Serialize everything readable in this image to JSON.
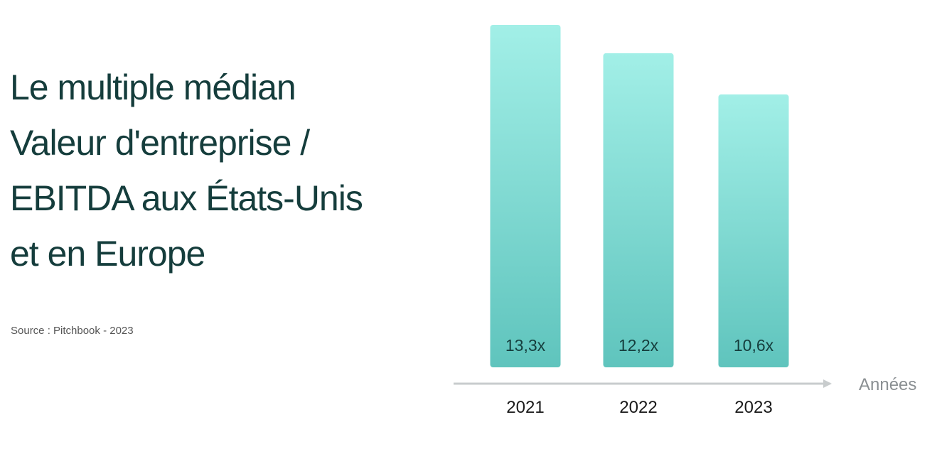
{
  "title_lines": [
    "Le multiple médian",
    "Valeur d'entreprise /",
    "EBITDA aux États-Unis",
    "et en Europe"
  ],
  "source": "Source : Pitchbook - 2023",
  "colors": {
    "bar_top": "#a2efe7",
    "bar_bottom": "#5fc4bd",
    "axis": "#c8cccd",
    "title": "#153d3c"
  },
  "chart_data": {
    "type": "bar",
    "categories": [
      "2021",
      "2022",
      "2023"
    ],
    "values": [
      13.3,
      12.2,
      10.6
    ],
    "data_labels": [
      "13,3x",
      "12,2x",
      "10,6x"
    ],
    "xlabel": "Années",
    "ylabel": "",
    "ylim": [
      0,
      13.3
    ],
    "grid": false
  }
}
